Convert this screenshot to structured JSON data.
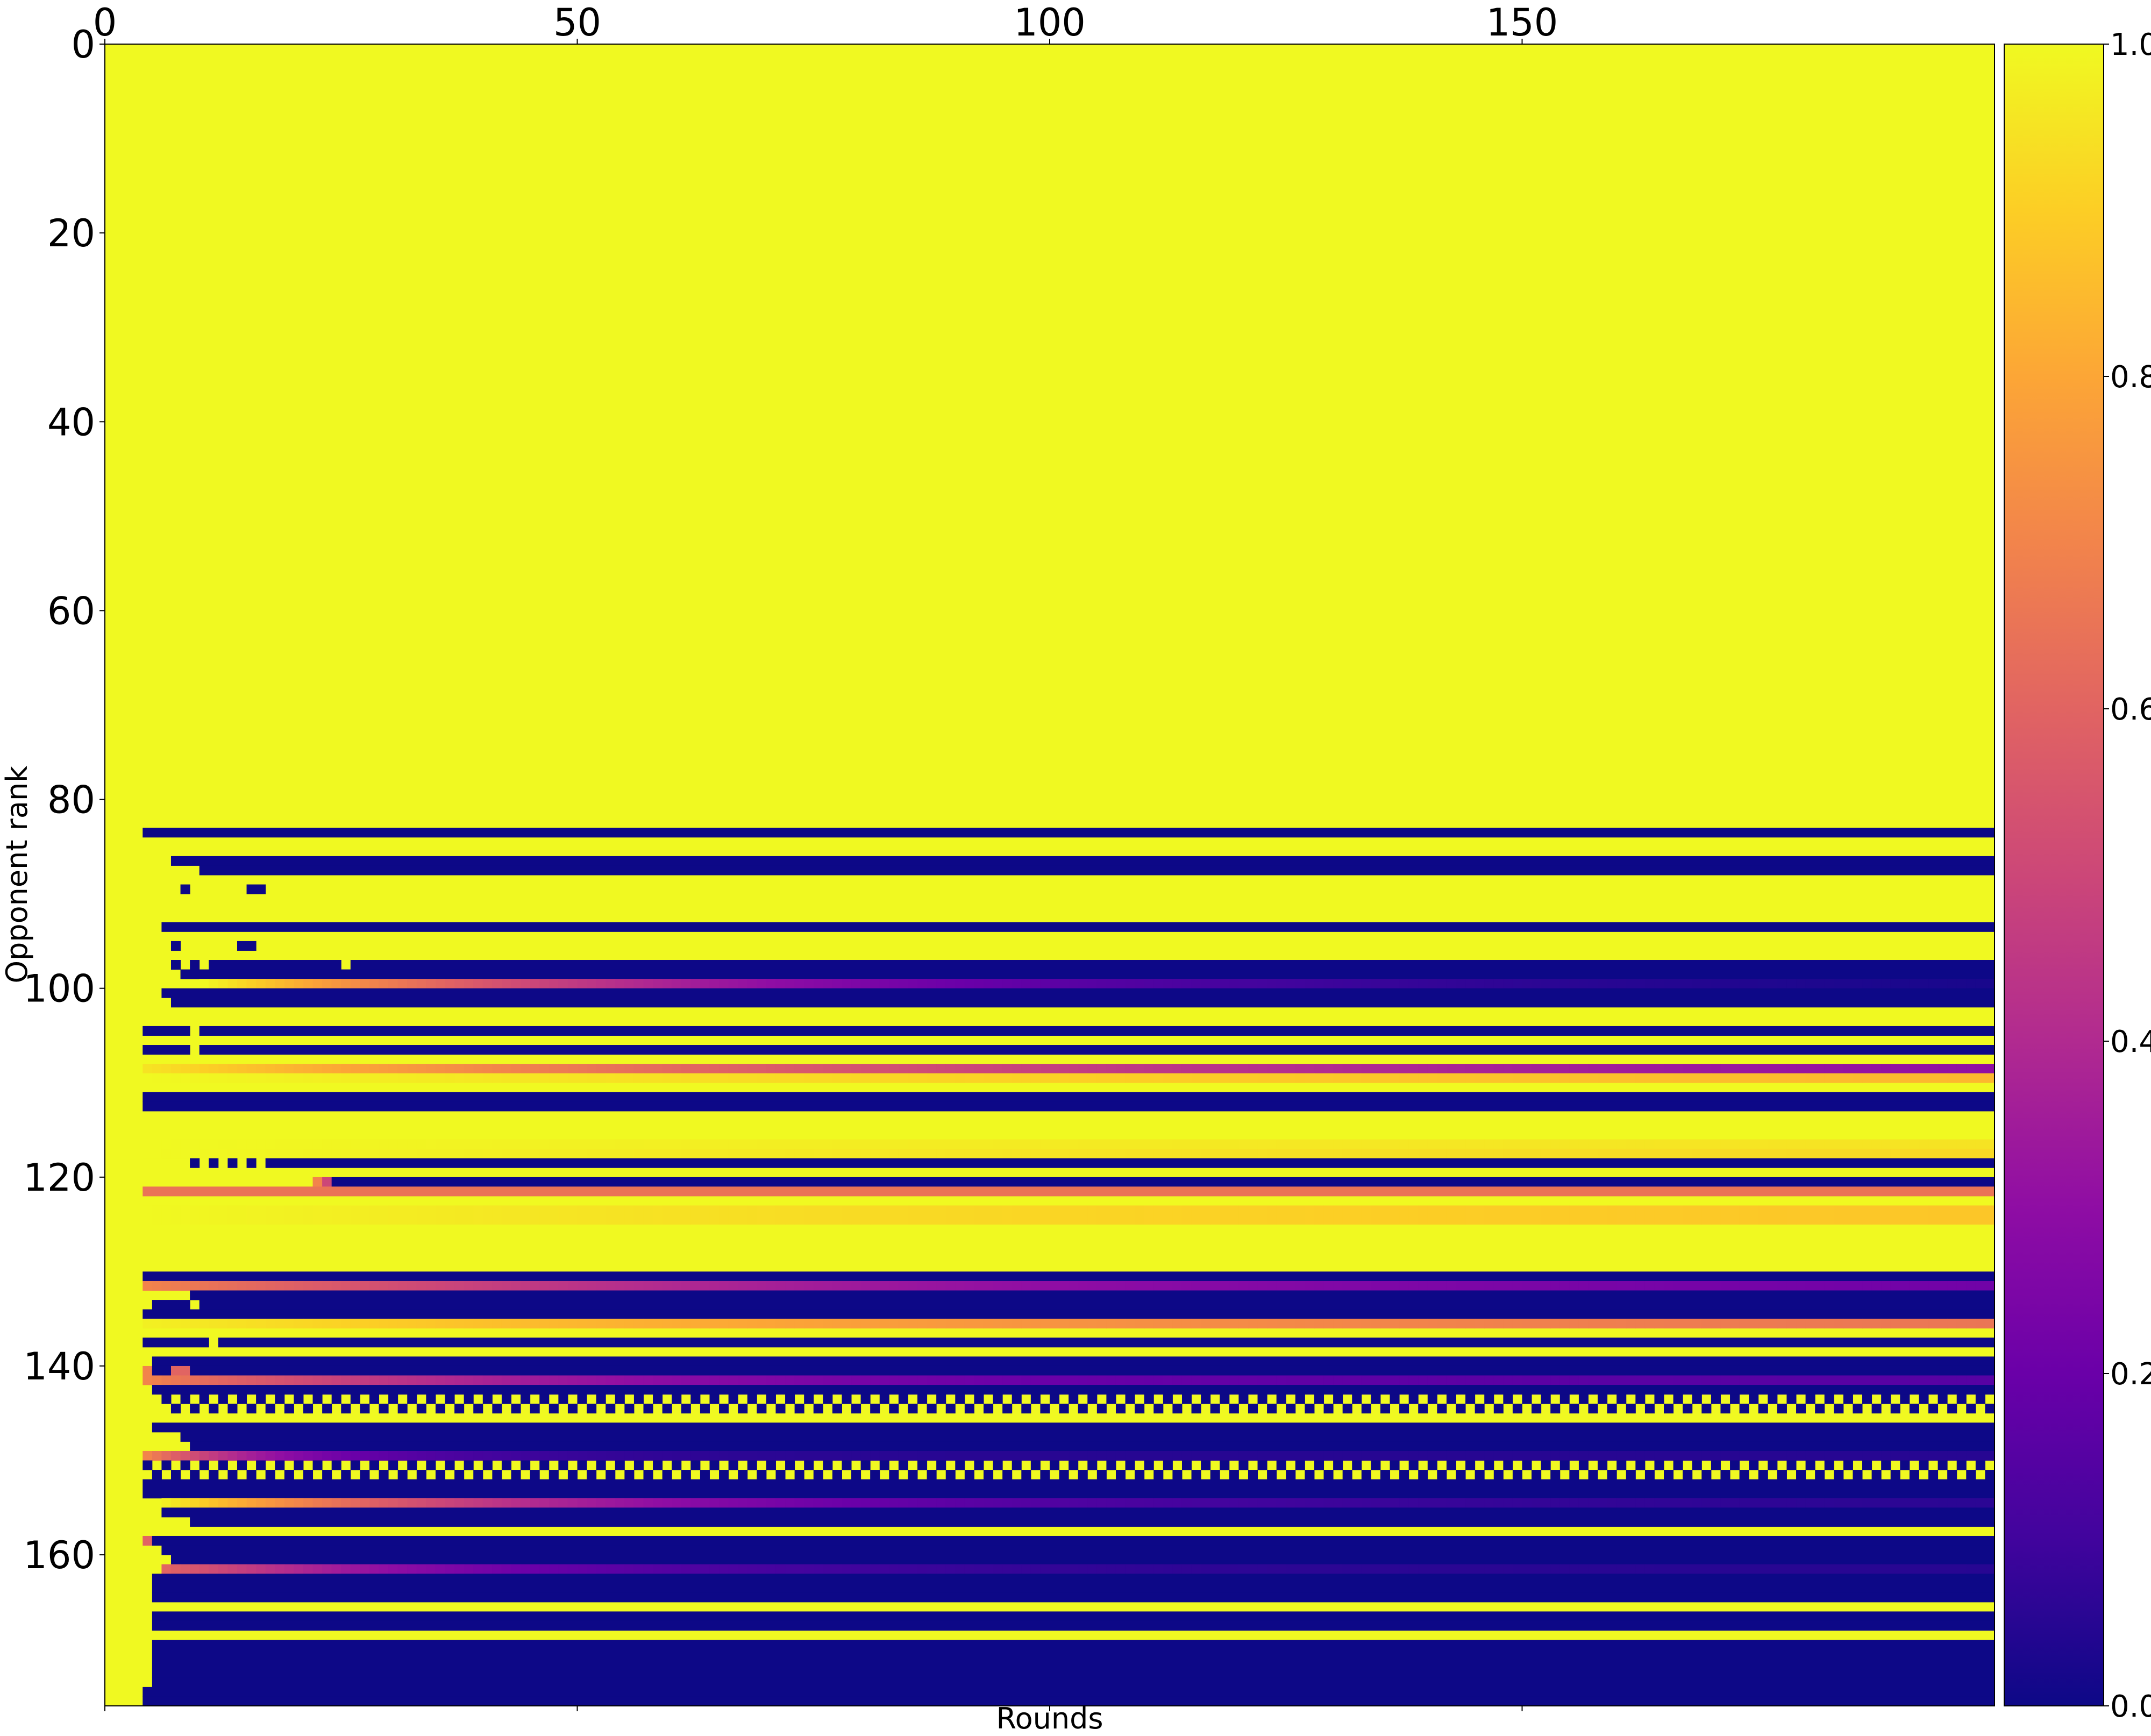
{
  "chart_data": {
    "type": "heatmap",
    "title": "",
    "xlabel": "Rounds",
    "ylabel": "Opponent rank",
    "colormap": "plasma",
    "color_range": [
      0.0,
      1.0
    ],
    "x_range": [
      0,
      200
    ],
    "y_range": [
      0,
      176
    ],
    "x_ticks": [
      0,
      50,
      100,
      150
    ],
    "y_ticks": [
      0,
      20,
      40,
      60,
      80,
      100,
      120,
      140,
      160
    ],
    "colorbar_ticks": [
      "0.0",
      "0.2",
      "0.4",
      "0.6",
      "0.8",
      "1.0"
    ],
    "colorbar_tick_values": [
      0.0,
      0.2,
      0.4,
      0.6,
      0.8,
      1.0
    ],
    "default_value": 1.0,
    "rows": [
      {
        "rank": 83,
        "start": 4,
        "end": 200,
        "value": 0.0
      },
      {
        "rank": 86,
        "start": 7,
        "end": 200,
        "value": 0.0
      },
      {
        "rank": 87,
        "start": 10,
        "end": 200,
        "value": 0.0
      },
      {
        "rank": 89,
        "start": 8,
        "end": 9,
        "value": 0.0
      },
      {
        "rank": 89,
        "start": 15,
        "end": 17,
        "value": 0.0
      },
      {
        "rank": 93,
        "start": 6,
        "end": 200,
        "value": 0.0
      },
      {
        "rank": 95,
        "start": 7,
        "end": 8,
        "value": 0.0
      },
      {
        "rank": 95,
        "start": 14,
        "end": 16,
        "value": 0.0
      },
      {
        "rank": 97,
        "start": 7,
        "end": 8,
        "value": 0.0
      },
      {
        "rank": 97,
        "start": 9,
        "end": 10,
        "value": 0.0
      },
      {
        "rank": 97,
        "start": 11,
        "end": 25,
        "value": 0.0
      },
      {
        "rank": 97,
        "start": 26,
        "end": 200,
        "value": 0.0
      },
      {
        "rank": 98,
        "start": 8,
        "end": 200,
        "value": 0.0
      },
      {
        "rank": 99,
        "start": 10,
        "end": 200,
        "value_from": 1.0,
        "value_to": 0.0,
        "decay": 50
      },
      {
        "rank": 100,
        "start": 6,
        "end": 200,
        "value": 0.0
      },
      {
        "rank": 101,
        "start": 7,
        "end": 200,
        "value": 0.0
      },
      {
        "rank": 104,
        "start": 4,
        "end": 9,
        "value": 0.0
      },
      {
        "rank": 104,
        "start": 10,
        "end": 200,
        "value": 0.0
      },
      {
        "rank": 106,
        "start": 4,
        "end": 9,
        "value": 0.0
      },
      {
        "rank": 106,
        "start": 10,
        "end": 200,
        "value": 0.0
      },
      {
        "rank": 108,
        "start": 4,
        "end": 200,
        "value_from": 0.95,
        "value_to": 0.22,
        "decay": 90
      },
      {
        "rank": 109,
        "start": 4,
        "end": 200,
        "value_from": 1.0,
        "value_to": 0.75,
        "decay": 200
      },
      {
        "rank": 111,
        "start": 4,
        "end": 200,
        "value": 0.0
      },
      {
        "rank": 112,
        "start": 4,
        "end": 200,
        "value": 0.0
      },
      {
        "rank": 116,
        "start": 4,
        "end": 200,
        "value_from": 1.0,
        "value_to": 0.93,
        "decay": 150
      },
      {
        "rank": 117,
        "start": 4,
        "end": 200,
        "value_from": 1.0,
        "value_to": 0.9,
        "decay": 150
      },
      {
        "rank": 118,
        "start": 9,
        "end": 10,
        "value": 0.0
      },
      {
        "rank": 118,
        "start": 11,
        "end": 12,
        "value": 0.0
      },
      {
        "rank": 118,
        "start": 13,
        "end": 14,
        "value": 0.0
      },
      {
        "rank": 118,
        "start": 15,
        "end": 16,
        "value": 0.0
      },
      {
        "rank": 118,
        "start": 17,
        "end": 200,
        "value": 0.0
      },
      {
        "rank": 120,
        "start": 22,
        "end": 23,
        "value": 0.7
      },
      {
        "rank": 120,
        "start": 23,
        "end": 24,
        "value": 0.5
      },
      {
        "rank": 120,
        "start": 24,
        "end": 200,
        "value": 0.0
      },
      {
        "rank": 121,
        "start": 4,
        "end": 200,
        "value": 0.65
      },
      {
        "rank": 123,
        "start": 4,
        "end": 200,
        "value_from": 1.0,
        "value_to": 0.85,
        "decay": 120
      },
      {
        "rank": 124,
        "start": 4,
        "end": 200,
        "value_from": 1.0,
        "value_to": 0.85,
        "decay": 120
      },
      {
        "rank": 130,
        "start": 4,
        "end": 200,
        "value": 0.0
      },
      {
        "rank": 131,
        "start": 4,
        "end": 200,
        "value_from": 0.7,
        "value_to": 0.2,
        "decay": 60
      },
      {
        "rank": 132,
        "start": 9,
        "end": 200,
        "value": 0.0
      },
      {
        "rank": 133,
        "start": 5,
        "end": 9,
        "value": 0.0
      },
      {
        "rank": 133,
        "start": 10,
        "end": 200,
        "value": 0.0
      },
      {
        "rank": 134,
        "start": 4,
        "end": 200,
        "value": 0.0
      },
      {
        "rank": 135,
        "start": 4,
        "end": 200,
        "value_from": 0.98,
        "value_to": 0.6,
        "decay": 100
      },
      {
        "rank": 137,
        "start": 4,
        "end": 11,
        "value": 0.0
      },
      {
        "rank": 137,
        "start": 12,
        "end": 200,
        "value": 0.0
      },
      {
        "rank": 139,
        "start": 5,
        "end": 200,
        "value": 0.0
      },
      {
        "rank": 140,
        "start": 4,
        "end": 5,
        "value": 0.7
      },
      {
        "rank": 140,
        "start": 5,
        "end": 7,
        "value": 0.0
      },
      {
        "rank": 140,
        "start": 7,
        "end": 9,
        "value": 0.6
      },
      {
        "rank": 140,
        "start": 9,
        "end": 200,
        "value": 0.0
      },
      {
        "rank": 141,
        "start": 4,
        "end": 200,
        "value_from": 0.7,
        "value_to": 0.15,
        "decay": 40
      },
      {
        "rank": 142,
        "start": 5,
        "end": 200,
        "value": 0.0
      },
      {
        "rank": 143,
        "start": 6,
        "end": 200,
        "pattern": "alt",
        "period": 2,
        "value": 0.0
      },
      {
        "rank": 144,
        "start": 6,
        "end": 200,
        "pattern": "alt",
        "period": 2,
        "value": 0.0,
        "offset": 1
      },
      {
        "rank": 146,
        "start": 5,
        "end": 200,
        "value": 0.0
      },
      {
        "rank": 147,
        "start": 8,
        "end": 200,
        "value": 0.0
      },
      {
        "rank": 148,
        "start": 9,
        "end": 200,
        "value": 0.0
      },
      {
        "rank": 149,
        "start": 4,
        "end": 200,
        "value_from": 0.7,
        "value_to": 0.05,
        "decay": 15
      },
      {
        "rank": 150,
        "start": 4,
        "end": 200,
        "pattern": "alt",
        "period": 2,
        "value": 0.0
      },
      {
        "rank": 151,
        "start": 4,
        "end": 200,
        "pattern": "alt",
        "period": 2,
        "value": 0.0,
        "offset": 1
      },
      {
        "rank": 152,
        "start": 4,
        "end": 200,
        "value": 0.0
      },
      {
        "rank": 153,
        "start": 4,
        "end": 200,
        "value": 0.0
      },
      {
        "rank": 154,
        "start": 6,
        "end": 200,
        "value_from": 0.98,
        "value_to": 0.05,
        "decay": 40
      },
      {
        "rank": 155,
        "start": 6,
        "end": 200,
        "value": 0.0
      },
      {
        "rank": 156,
        "start": 9,
        "end": 200,
        "value": 0.0
      },
      {
        "rank": 158,
        "start": 4,
        "end": 5,
        "value": 0.6
      },
      {
        "rank": 158,
        "start": 5,
        "end": 200,
        "value": 0.0
      },
      {
        "rank": 159,
        "start": 6,
        "end": 200,
        "value": 0.0
      },
      {
        "rank": 160,
        "start": 7,
        "end": 200,
        "value": 0.0
      },
      {
        "rank": 161,
        "start": 6,
        "end": 200,
        "value_from": 0.6,
        "value_to": 0.05,
        "decay": 30
      },
      {
        "rank": 162,
        "start": 5,
        "end": 200,
        "value": 0.0
      },
      {
        "rank": 163,
        "start": 5,
        "end": 200,
        "value": 0.0
      },
      {
        "rank": 164,
        "start": 5,
        "end": 200,
        "value": 0.0
      },
      {
        "rank": 166,
        "start": 5,
        "end": 200,
        "value": 0.0
      },
      {
        "rank": 167,
        "start": 5,
        "end": 200,
        "value": 0.0
      },
      {
        "rank": 169,
        "start": 5,
        "end": 200,
        "value": 0.0
      },
      {
        "rank": 170,
        "start": 5,
        "end": 200,
        "value": 0.0
      },
      {
        "rank": 171,
        "start": 5,
        "end": 200,
        "value": 0.0
      },
      {
        "rank": 172,
        "start": 5,
        "end": 200,
        "value": 0.0
      },
      {
        "rank": 173,
        "start": 5,
        "end": 200,
        "value": 0.0
      },
      {
        "rank": 174,
        "start": 4,
        "end": 200,
        "value": 0.0
      },
      {
        "rank": 175,
        "start": 4,
        "end": 200,
        "value": 0.0
      }
    ]
  }
}
